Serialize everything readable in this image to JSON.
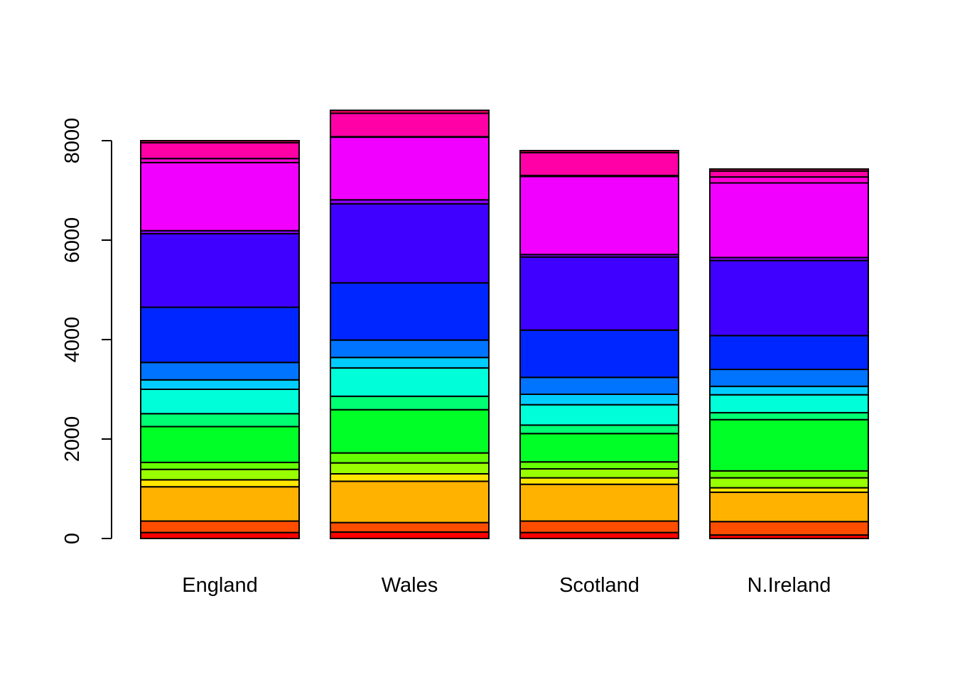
{
  "chart_data": {
    "type": "bar",
    "stacked": true,
    "categories": [
      "England",
      "Wales",
      "Scotland",
      "N.Ireland"
    ],
    "ylim": [
      0,
      8000
    ],
    "yticks": [
      0,
      2000,
      4000,
      6000,
      8000
    ],
    "grid": false,
    "series": [
      {
        "color": "#FF0000",
        "values": [
          120,
          130,
          120,
          70
        ]
      },
      {
        "color": "#FF4D00",
        "values": [
          230,
          190,
          230,
          270
        ]
      },
      {
        "color": "#FFB200",
        "values": [
          690,
          830,
          740,
          590
        ]
      },
      {
        "color": "#FFE500",
        "values": [
          140,
          150,
          130,
          90
        ]
      },
      {
        "color": "#99FF00",
        "values": [
          210,
          220,
          180,
          200
        ]
      },
      {
        "color": "#66FF00",
        "values": [
          140,
          200,
          140,
          140
        ]
      },
      {
        "color": "#00FF26",
        "values": [
          720,
          870,
          570,
          1030
        ]
      },
      {
        "color": "#00FF73",
        "values": [
          260,
          270,
          170,
          140
        ]
      },
      {
        "color": "#00FFD9",
        "values": [
          490,
          570,
          410,
          360
        ]
      },
      {
        "color": "#00CCFF",
        "values": [
          190,
          210,
          210,
          170
        ]
      },
      {
        "color": "#0073FF",
        "values": [
          350,
          350,
          340,
          340
        ]
      },
      {
        "color": "#0026FF",
        "values": [
          1110,
          1150,
          950,
          680
        ]
      },
      {
        "color": "#4000FF",
        "values": [
          1480,
          1590,
          1470,
          1510
        ]
      },
      {
        "color": "#8C00FF",
        "values": [
          60,
          80,
          50,
          60
        ]
      },
      {
        "color": "#F200FF",
        "values": [
          1370,
          1260,
          1570,
          1500
        ]
      },
      {
        "color": "#FF00D9",
        "values": [
          80,
          10,
          20,
          120
        ]
      },
      {
        "color": "#FF00A6",
        "values": [
          320,
          470,
          460,
          120
        ]
      },
      {
        "color": "#FF0066",
        "values": [
          40,
          60,
          40,
          40
        ]
      }
    ]
  }
}
